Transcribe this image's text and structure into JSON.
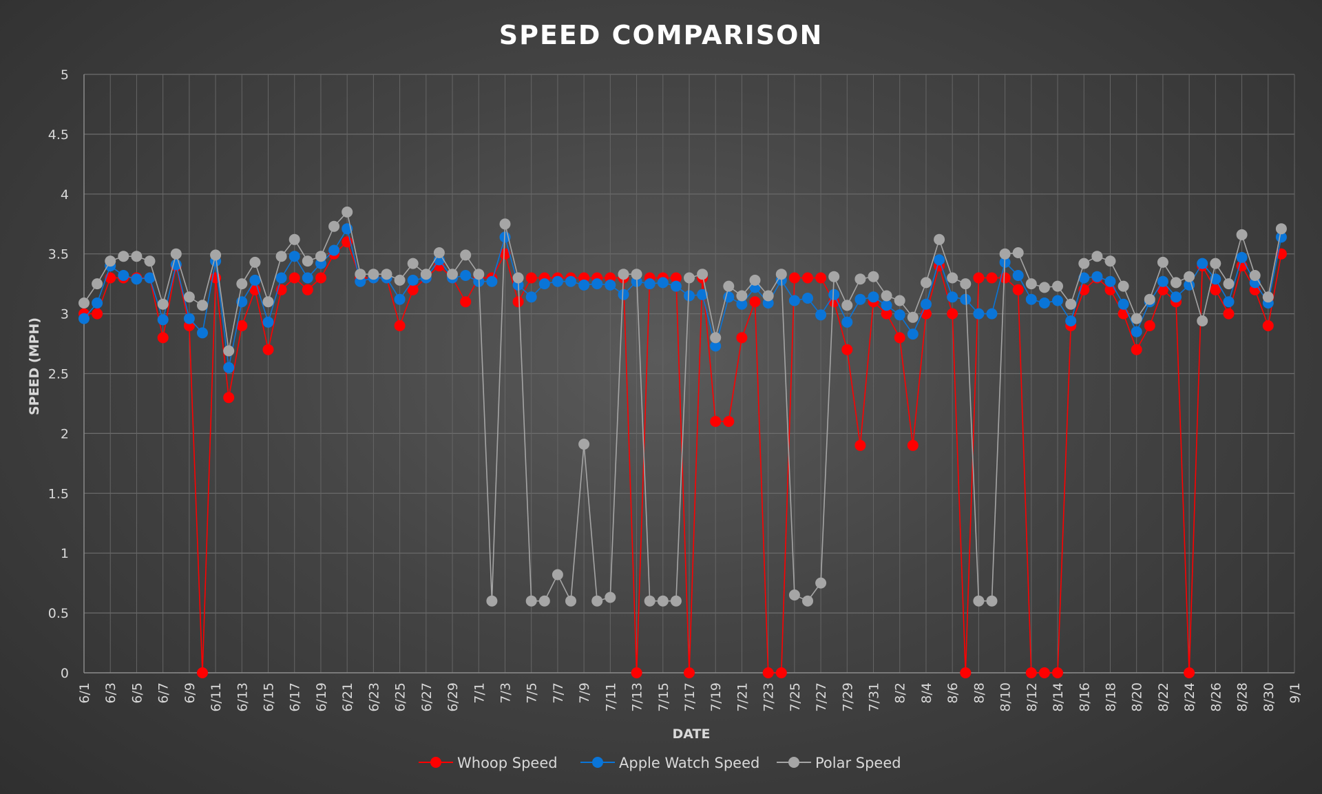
{
  "chart_data": {
    "type": "line",
    "title": "SPEED COMPARISON",
    "xlabel": "DATE",
    "ylabel": "SPEED (MPH)",
    "ylim": [
      0,
      5
    ],
    "y_ticks": [
      "0",
      "0.5",
      "1",
      "1.5",
      "2",
      "2.5",
      "3",
      "3.5",
      "4",
      "4.5",
      "5"
    ],
    "x_tick_labels": [
      "6/1",
      "6/3",
      "6/5",
      "6/7",
      "6/9",
      "6/11",
      "6/13",
      "6/15",
      "6/17",
      "6/19",
      "6/21",
      "6/23",
      "6/25",
      "6/27",
      "6/29",
      "7/1",
      "7/3",
      "7/5",
      "7/7",
      "7/9",
      "7/11",
      "7/13",
      "7/15",
      "7/17",
      "7/19",
      "7/21",
      "7/23",
      "7/25",
      "7/27",
      "7/29",
      "7/31",
      "8/2",
      "8/4",
      "8/6",
      "8/8",
      "8/10",
      "8/12",
      "8/14",
      "8/16",
      "8/18",
      "8/20",
      "8/22",
      "8/24",
      "8/26",
      "8/28",
      "8/30",
      "9/1"
    ],
    "grid": true,
    "legend_position": "bottom",
    "categories": [
      "6/1",
      "6/2",
      "6/3",
      "6/4",
      "6/5",
      "6/6",
      "6/7",
      "6/8",
      "6/9",
      "6/10",
      "6/11",
      "6/12",
      "6/13",
      "6/14",
      "6/15",
      "6/16",
      "6/17",
      "6/18",
      "6/19",
      "6/20",
      "6/21",
      "6/22",
      "6/23",
      "6/24",
      "6/25",
      "6/26",
      "6/27",
      "6/28",
      "6/29",
      "6/30",
      "7/1",
      "7/2",
      "7/3",
      "7/4",
      "7/5",
      "7/6",
      "7/7",
      "7/8",
      "7/9",
      "7/10",
      "7/11",
      "7/12",
      "7/13",
      "7/14",
      "7/15",
      "7/16",
      "7/17",
      "7/18",
      "7/19",
      "7/20",
      "7/21",
      "7/22",
      "7/23",
      "7/24",
      "7/25",
      "7/26",
      "7/27",
      "7/28",
      "7/29",
      "7/30",
      "7/31",
      "8/1",
      "8/2",
      "8/3",
      "8/4",
      "8/5",
      "8/6",
      "8/7",
      "8/8",
      "8/9",
      "8/10",
      "8/11",
      "8/12",
      "8/13",
      "8/14",
      "8/15",
      "8/16",
      "8/17",
      "8/18",
      "8/19",
      "8/20",
      "8/21",
      "8/22",
      "8/23",
      "8/24",
      "8/25",
      "8/26",
      "8/27",
      "8/28",
      "8/29",
      "8/30",
      "8/31"
    ],
    "series": [
      {
        "name": "Whoop Speed",
        "color": "#ff0000",
        "values": [
          3.0,
          3.0,
          3.3,
          3.3,
          3.3,
          3.3,
          2.8,
          3.4,
          2.9,
          0,
          3.3,
          2.3,
          2.9,
          3.2,
          2.7,
          3.2,
          3.3,
          3.2,
          3.3,
          3.5,
          3.6,
          3.3,
          3.3,
          3.3,
          2.9,
          3.2,
          3.3,
          3.4,
          3.3,
          3.1,
          3.3,
          3.3,
          3.5,
          3.1,
          3.3,
          3.3,
          3.3,
          3.3,
          3.3,
          3.3,
          3.3,
          3.3,
          0,
          3.3,
          3.3,
          3.3,
          0,
          3.3,
          2.1,
          2.1,
          2.8,
          3.1,
          0,
          0,
          3.3,
          3.3,
          3.3,
          3.1,
          2.7,
          1.9,
          3.1,
          3.0,
          2.8,
          1.9,
          3.0,
          3.4,
          3.0,
          0,
          3.3,
          3.3,
          3.3,
          3.2,
          0,
          0,
          0,
          2.9,
          3.2,
          3.3,
          3.2,
          3.0,
          2.7,
          2.9,
          3.2,
          3.1,
          0,
          3.4,
          3.2,
          3.0,
          3.4,
          3.2,
          2.9,
          3.5
        ]
      },
      {
        "name": "Apple Watch Speed",
        "color": "#0a75d8",
        "values": [
          2.96,
          3.09,
          3.4,
          3.32,
          3.29,
          3.3,
          2.95,
          3.41,
          2.96,
          2.84,
          3.44,
          2.55,
          3.1,
          3.28,
          2.93,
          3.3,
          3.48,
          3.3,
          3.42,
          3.53,
          3.71,
          3.27,
          3.3,
          3.3,
          3.12,
          3.28,
          3.3,
          3.45,
          3.3,
          3.32,
          3.27,
          3.27,
          3.64,
          3.24,
          3.14,
          3.25,
          3.27,
          3.27,
          3.24,
          3.25,
          3.24,
          3.16,
          3.27,
          3.25,
          3.26,
          3.23,
          3.15,
          3.16,
          2.73,
          3.14,
          3.08,
          3.22,
          3.09,
          3.28,
          3.11,
          3.13,
          2.99,
          3.16,
          2.93,
          3.12,
          3.14,
          3.07,
          2.99,
          2.83,
          3.08,
          3.45,
          3.14,
          3.12,
          3.0,
          3.0,
          3.43,
          3.32,
          3.12,
          3.09,
          3.11,
          2.94,
          3.3,
          3.31,
          3.27,
          3.08,
          2.85,
          3.1,
          3.27,
          3.14,
          3.24,
          3.42,
          3.29,
          3.1,
          3.47,
          3.26,
          3.09,
          3.64
        ]
      },
      {
        "name": "Polar Speed",
        "color": "#a6a6a6",
        "values": [
          3.09,
          3.25,
          3.44,
          3.48,
          3.48,
          3.44,
          3.08,
          3.5,
          3.14,
          3.07,
          3.49,
          2.69,
          3.25,
          3.43,
          3.1,
          3.48,
          3.62,
          3.44,
          3.48,
          3.73,
          3.85,
          3.33,
          3.33,
          3.33,
          3.28,
          3.42,
          3.33,
          3.51,
          3.33,
          3.49,
          3.33,
          0.6,
          3.75,
          3.3,
          0.6,
          0.6,
          0.82,
          0.6,
          1.91,
          0.6,
          0.63,
          3.33,
          3.33,
          0.6,
          0.6,
          0.6,
          3.3,
          3.33,
          2.8,
          3.23,
          3.15,
          3.28,
          3.15,
          3.33,
          0.65,
          0.6,
          0.75,
          3.31,
          3.07,
          3.29,
          3.31,
          3.15,
          3.11,
          2.97,
          3.26,
          3.62,
          3.3,
          3.25,
          0.6,
          0.6,
          3.5,
          3.51,
          3.25,
          3.22,
          3.23,
          3.08,
          3.42,
          3.48,
          3.44,
          3.23,
          2.96,
          3.12,
          3.43,
          3.26,
          3.31,
          2.94,
          3.42,
          3.25,
          3.66,
          3.32,
          3.14,
          3.71
        ]
      }
    ]
  }
}
